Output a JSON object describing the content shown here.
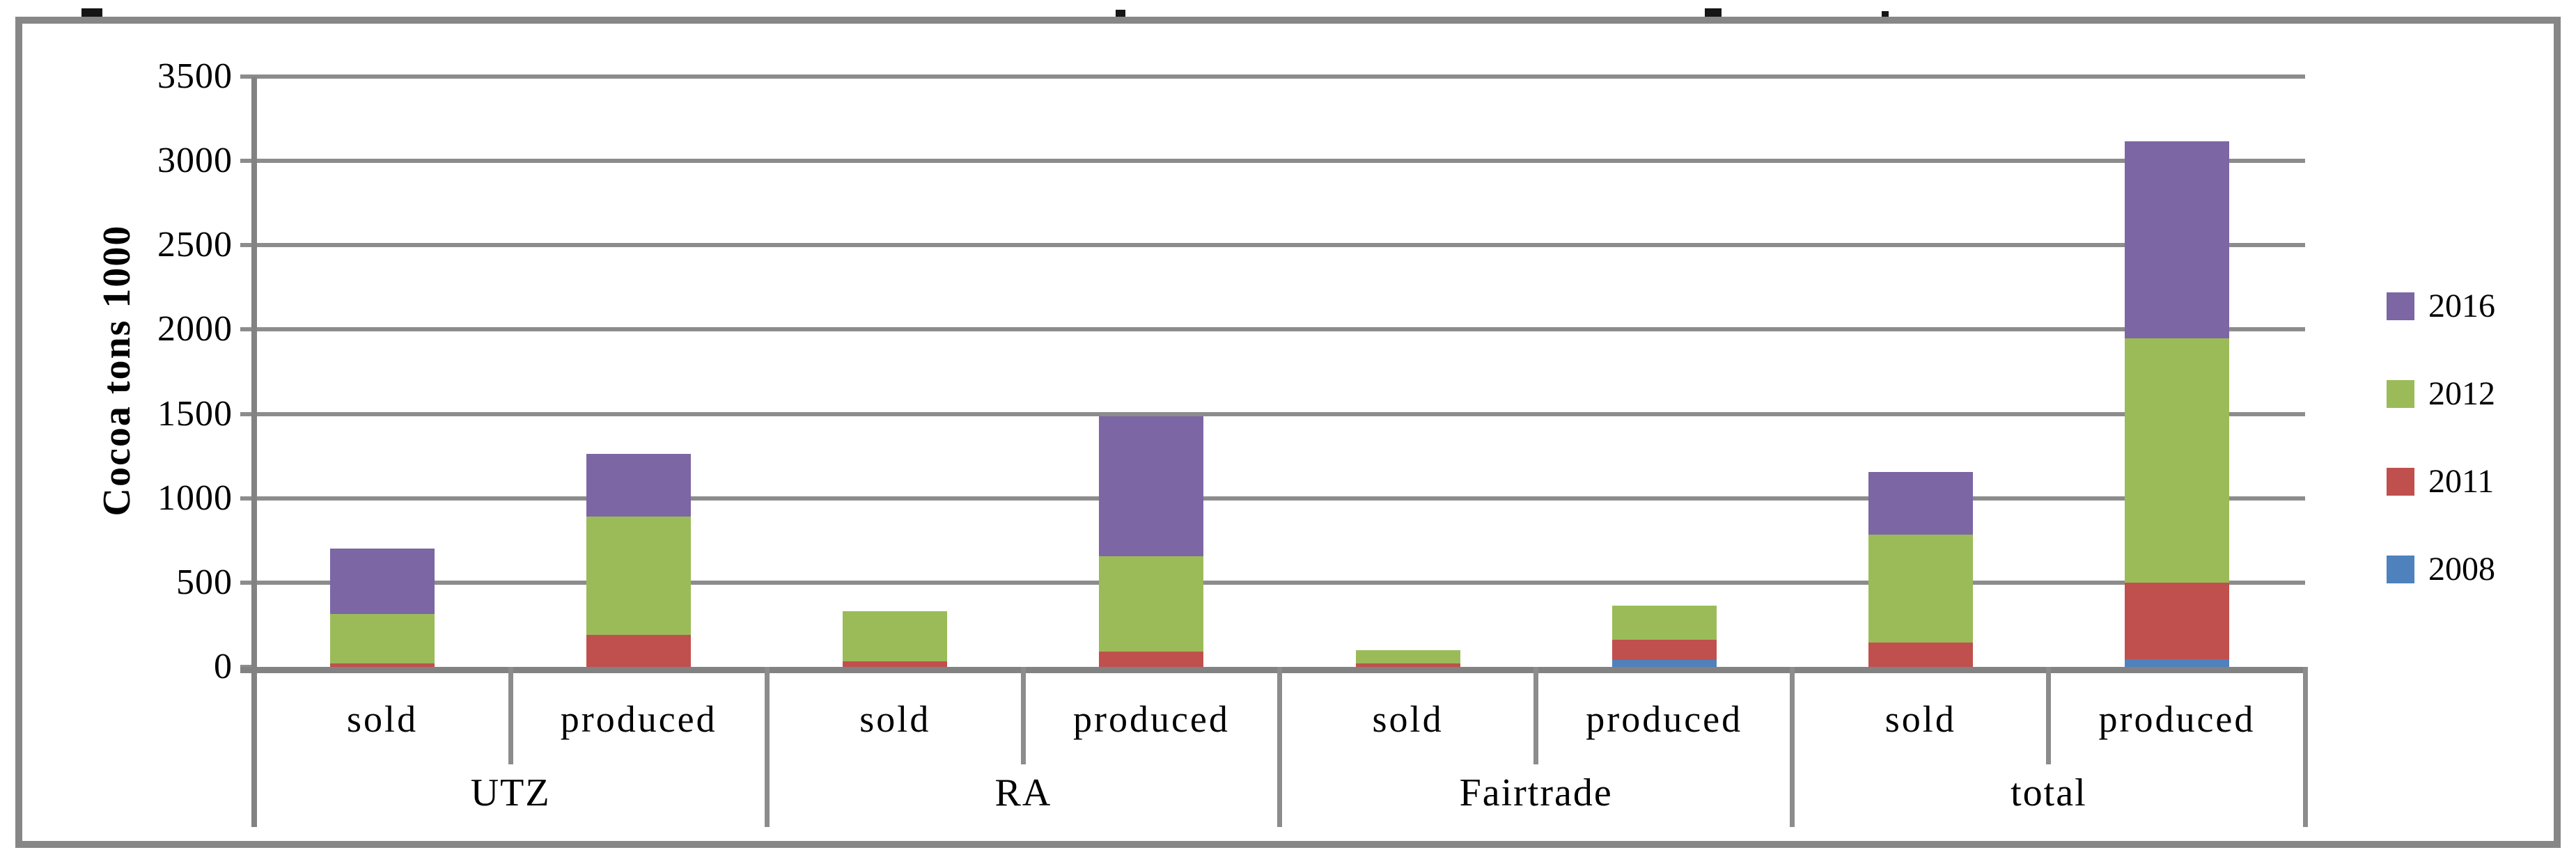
{
  "chart_data": {
    "type": "bar",
    "stacked": true,
    "title": "",
    "ylabel": "Cocoa tons 1000",
    "xlabel": "",
    "ylim": [
      0,
      3500
    ],
    "ytick_step": 500,
    "yticks": [
      3500,
      3000,
      2500,
      2000,
      1500,
      1000,
      500,
      0
    ],
    "grid": true,
    "legend_position": "right",
    "groups": [
      "UTZ",
      "RA",
      "Fairtrade",
      "total"
    ],
    "subcategories": [
      "sold",
      "produced"
    ],
    "categories": [
      "UTZ sold",
      "UTZ produced",
      "RA sold",
      "RA produced",
      "Fairtrade sold",
      "Fairtrade produced",
      "total sold",
      "total produced"
    ],
    "series": [
      {
        "name": "2008",
        "color": "#4F81BD",
        "values": [
          0,
          0,
          0,
          0,
          0,
          40,
          0,
          45
        ]
      },
      {
        "name": "2011",
        "color": "#C0504D",
        "values": [
          20,
          190,
          35,
          90,
          20,
          120,
          145,
          455
        ]
      },
      {
        "name": "2012",
        "color": "#9BBB59",
        "values": [
          295,
          700,
          295,
          565,
          80,
          205,
          640,
          1450
        ]
      },
      {
        "name": "2016",
        "color": "#7C66A4",
        "values": [
          385,
          375,
          0,
          830,
          0,
          0,
          370,
          1165
        ]
      }
    ],
    "legend_order": [
      "2016",
      "2012",
      "2011",
      "2008"
    ],
    "colors": {
      "gridline": "#8C8C8C",
      "axis": "#828282",
      "frame": "#878787",
      "text": "#000000",
      "background": "#FFFFFF"
    }
  }
}
